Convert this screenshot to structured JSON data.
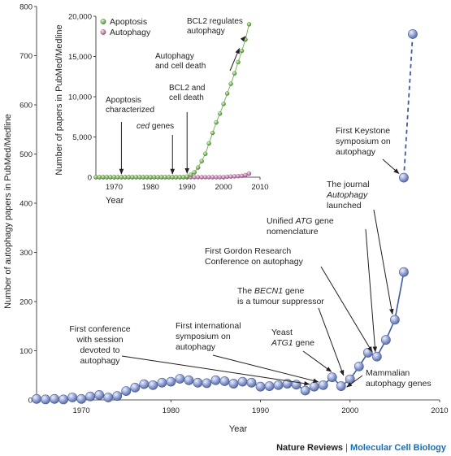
{
  "chart_data": [
    {
      "type": "scatter",
      "xlabel": "Year",
      "ylabel": "Number of autophagy papers in PubMed/Medline",
      "xlim": [
        1965,
        2010
      ],
      "ylim": [
        0,
        800
      ],
      "x_ticks": [
        "1970",
        "1980",
        "1990",
        "2000",
        "2010"
      ],
      "y_ticks": [
        "0",
        "100",
        "200",
        "300",
        "400",
        "500",
        "600",
        "700",
        "800"
      ],
      "series": [
        {
          "color": "#7f91c9",
          "x": [
            1965,
            1966,
            1967,
            1968,
            1969,
            1970,
            1971,
            1972,
            1973,
            1974,
            1975,
            1976,
            1977,
            1978,
            1979,
            1980,
            1981,
            1982,
            1983,
            1984,
            1985,
            1986,
            1987,
            1988,
            1989,
            1990,
            1991,
            1992,
            1993,
            1994,
            1995,
            1996,
            1997,
            1998,
            1999,
            2000,
            2001,
            2002,
            2003,
            2004,
            2005,
            2006
          ],
          "y": [
            2,
            1,
            2,
            1,
            5,
            2,
            7,
            10,
            5,
            8,
            18,
            25,
            32,
            30,
            35,
            37,
            43,
            40,
            35,
            34,
            40,
            38,
            33,
            37,
            35,
            27,
            28,
            30,
            33,
            31,
            19,
            27,
            30,
            46,
            28,
            42,
            68,
            96,
            88,
            122,
            163,
            260
          ],
          "projected": {
            "x": [
              2006,
              2007
            ],
            "y": [
              452,
              744
            ]
          }
        }
      ],
      "annotations": [
        {
          "lines": [
            "First conference",
            "with session",
            "devoted to",
            "autophagy"
          ],
          "year": 1996
        },
        {
          "lines": [
            "First international",
            "symposium on",
            "autophagy"
          ],
          "year": 1997
        },
        {
          "lines": [
            "Yeast",
            "ATG1 gene"
          ],
          "year": 1998
        },
        {
          "lines": [
            "Mammalian",
            "autophagy genes"
          ],
          "year": 1999
        },
        {
          "lines": [
            "The BECN1 gene",
            "is a tumour suppressor"
          ],
          "year": 1999
        },
        {
          "lines": [
            "First Gordon Research",
            "Conference on autophagy"
          ],
          "year": 2003
        },
        {
          "lines": [
            "Unified ATG gene",
            "nomenclature"
          ],
          "year": 2003
        },
        {
          "lines": [
            "The journal",
            "Autophagy",
            "launched"
          ],
          "year": 2005
        },
        {
          "lines": [
            "First Keystone",
            "symposium on",
            "autophagy"
          ],
          "year": 2006
        }
      ]
    },
    {
      "type": "scatter",
      "xlabel": "Year",
      "ylabel": "Number of papers in PubMed/Medline",
      "xlim": [
        1965,
        2010
      ],
      "ylim": [
        0,
        20000
      ],
      "x_ticks": [
        "1970",
        "1980",
        "1990",
        "2000",
        "2010"
      ],
      "y_ticks": [
        "0",
        "5,000",
        "10,000",
        "15,000",
        "20,000"
      ],
      "legend": {
        "position": "top-left",
        "entries": [
          "Apoptosis",
          "Autophagy"
        ]
      },
      "series": [
        {
          "name": "Apoptosis",
          "color": "#7fb55e",
          "x": [
            1965,
            1966,
            1967,
            1968,
            1969,
            1970,
            1971,
            1972,
            1973,
            1974,
            1975,
            1976,
            1977,
            1978,
            1979,
            1980,
            1981,
            1982,
            1983,
            1984,
            1985,
            1986,
            1987,
            1988,
            1989,
            1990,
            1991,
            1992,
            1993,
            1994,
            1995,
            1996,
            1997,
            1998,
            1999,
            2000,
            2001,
            2002,
            2003,
            2004,
            2005,
            2006,
            2007
          ],
          "y": [
            0,
            0,
            0,
            0,
            0,
            0,
            0,
            0,
            0,
            0,
            0,
            0,
            0,
            0,
            0,
            0,
            0,
            0,
            0,
            0,
            0,
            0,
            0,
            0,
            0,
            80,
            300,
            600,
            1200,
            2000,
            2900,
            4200,
            5500,
            6800,
            7900,
            9100,
            10400,
            11600,
            12900,
            14300,
            15700,
            17100,
            19000
          ]
        },
        {
          "name": "Autophagy",
          "color": "#c98ab6",
          "x": [
            1965,
            1966,
            1967,
            1968,
            1969,
            1970,
            1971,
            1972,
            1973,
            1974,
            1975,
            1976,
            1977,
            1978,
            1979,
            1980,
            1981,
            1982,
            1983,
            1984,
            1985,
            1986,
            1987,
            1988,
            1989,
            1990,
            1991,
            1992,
            1993,
            1994,
            1995,
            1996,
            1997,
            1998,
            1999,
            2000,
            2001,
            2002,
            2003,
            2004,
            2005,
            2006,
            2007
          ],
          "y": [
            0,
            0,
            0,
            0,
            0,
            0,
            0,
            0,
            0,
            0,
            0,
            0,
            0,
            0,
            0,
            0,
            0,
            0,
            0,
            0,
            0,
            0,
            0,
            0,
            0,
            0,
            0,
            0,
            0,
            0,
            0,
            0,
            0,
            0,
            0,
            0,
            50,
            80,
            100,
            130,
            170,
            260,
            450
          ]
        }
      ],
      "annotations": [
        {
          "lines": [
            "Apoptosis",
            "characterized"
          ],
          "year": 1972
        },
        {
          "lines": [
            "ced genes"
          ],
          "year": 1986
        },
        {
          "lines": [
            "BCL2 and",
            "cell death"
          ],
          "year": 1990
        },
        {
          "lines": [
            "Autophagy",
            "and cell death"
          ],
          "year": 2005
        },
        {
          "lines": [
            "BCL2 regulates",
            "autophagy"
          ],
          "year": 2006
        }
      ]
    }
  ],
  "credit": {
    "journal": "Nature Reviews",
    "separator": "|",
    "section": "Molecular Cell Biology"
  }
}
